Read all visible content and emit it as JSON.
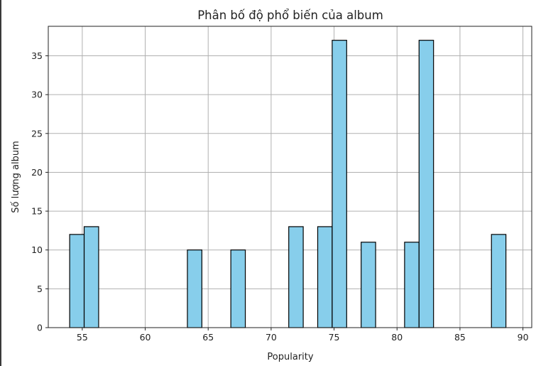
{
  "chart_data": {
    "type": "bar",
    "title": "Phân bố độ phổ biến của album",
    "xlabel": "Popularity",
    "ylabel": "Số lượng album",
    "xlim": [
      52.3,
      90.7
    ],
    "ylim": [
      0,
      38.8
    ],
    "grid": true,
    "bar_color": "#87ceeb",
    "edge_color": "#000000",
    "x_ticks": [
      55,
      60,
      65,
      70,
      75,
      80,
      85,
      90
    ],
    "y_ticks": [
      0,
      5,
      10,
      15,
      20,
      25,
      30,
      35
    ],
    "bins": [
      {
        "x0": 54.0,
        "x1": 55.15,
        "value": 12
      },
      {
        "x0": 55.15,
        "x1": 56.3,
        "value": 13
      },
      {
        "x0": 63.35,
        "x1": 64.5,
        "value": 10
      },
      {
        "x0": 66.8,
        "x1": 67.95,
        "value": 10
      },
      {
        "x0": 71.4,
        "x1": 72.55,
        "value": 13
      },
      {
        "x0": 73.7,
        "x1": 74.85,
        "value": 13
      },
      {
        "x0": 74.85,
        "x1": 76.0,
        "value": 37
      },
      {
        "x0": 77.15,
        "x1": 78.3,
        "value": 11
      },
      {
        "x0": 80.6,
        "x1": 81.75,
        "value": 11
      },
      {
        "x0": 81.75,
        "x1": 82.9,
        "value": 37
      },
      {
        "x0": 87.5,
        "x1": 88.65,
        "value": 12
      }
    ]
  }
}
